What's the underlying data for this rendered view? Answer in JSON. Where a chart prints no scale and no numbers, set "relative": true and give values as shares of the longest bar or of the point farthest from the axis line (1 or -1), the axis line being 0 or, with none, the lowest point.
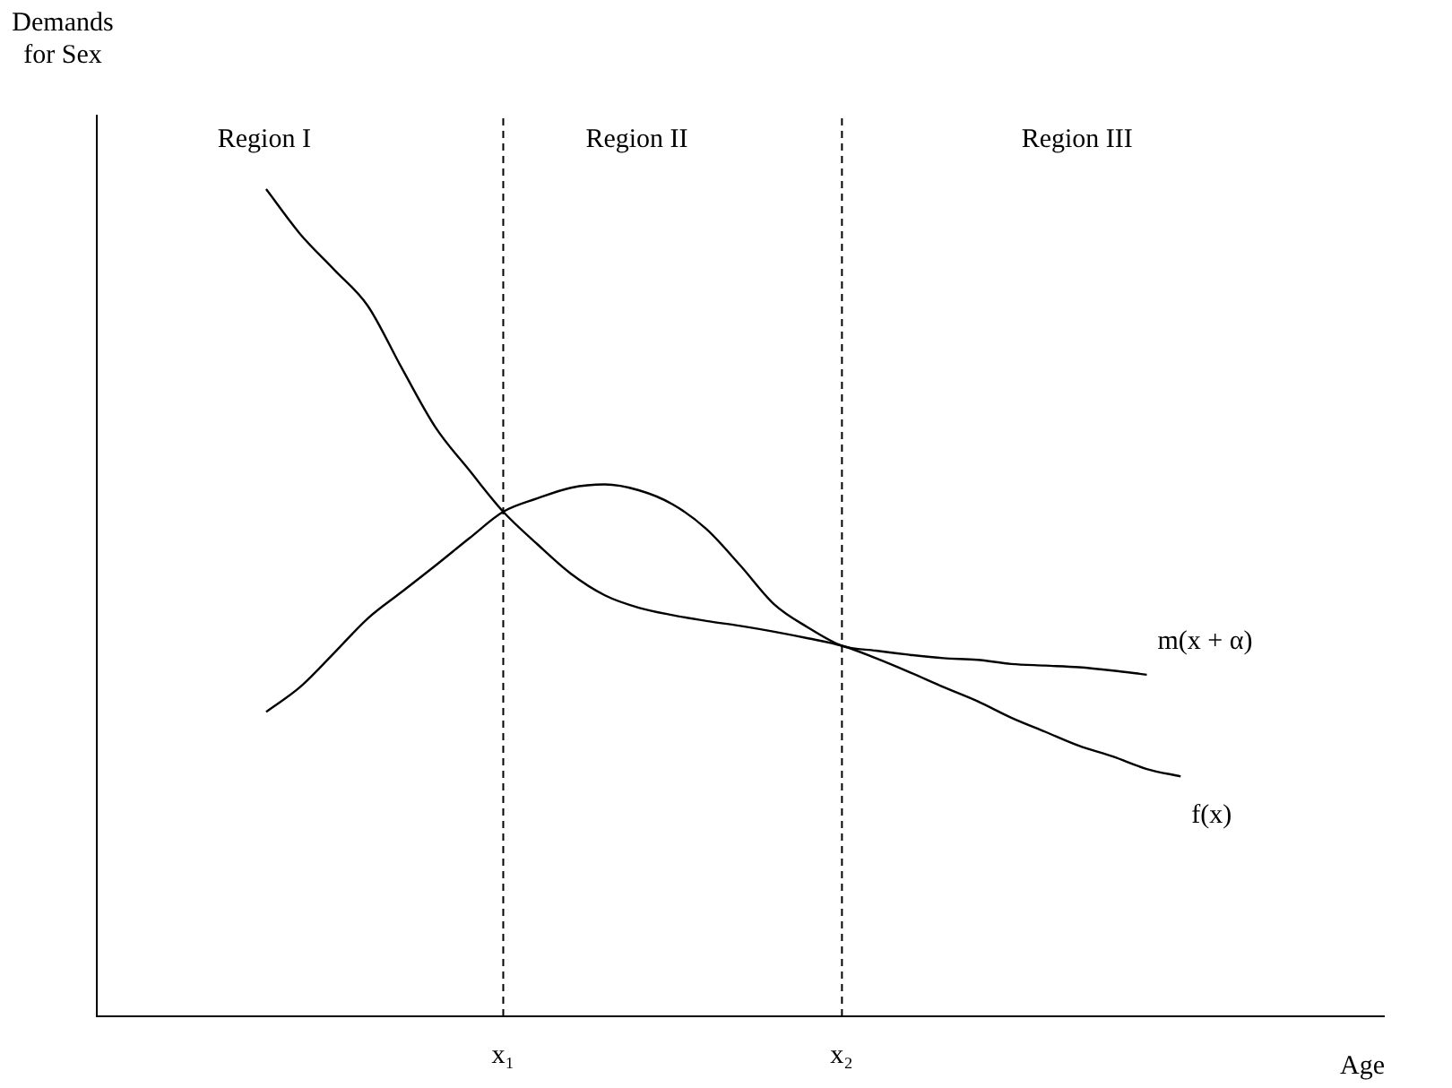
{
  "chart_data": {
    "type": "line",
    "relative": true,
    "xlabel": "Age",
    "ylabel": "Demands for Sex",
    "categories": [
      null,
      null,
      null,
      null,
      null,
      null,
      null,
      null,
      null,
      null,
      null,
      null,
      "x₁",
      null,
      null,
      null,
      null,
      null,
      null,
      null,
      null,
      null,
      "x₂",
      null,
      null,
      null,
      null,
      null,
      null,
      null,
      null,
      null,
      null,
      null,
      null,
      null,
      null,
      null,
      null
    ],
    "tick_labels": "x",
    "legend": false,
    "grid": false,
    "marker": "none",
    "line_style": "solid",
    "series": [
      {
        "name": "f(x)",
        "color": "#000000",
        "values": [
          null,
          null,
          null,
          null,
          null,
          1.0,
          0.946,
          0.903,
          0.859,
          0.784,
          0.712,
          0.66,
          0.61,
          0.571,
          0.535,
          0.509,
          0.494,
          0.485,
          0.478,
          0.472,
          0.465,
          0.457,
          0.448,
          0.433,
          0.416,
          0.398,
          0.381,
          0.361,
          0.344,
          0.327,
          0.314,
          0.299,
          0.29,
          null,
          null,
          null,
          null,
          null,
          null
        ]
      },
      {
        "name": "m(x + α)",
        "color": "#000000",
        "values": [
          null,
          null,
          null,
          null,
          null,
          0.368,
          0.398,
          0.439,
          0.481,
          0.513,
          0.545,
          0.578,
          0.61,
          0.626,
          0.639,
          0.643,
          0.636,
          0.619,
          0.589,
          0.545,
          0.498,
          0.47,
          0.448,
          0.442,
          0.437,
          0.433,
          0.431,
          0.426,
          0.424,
          0.422,
          0.418,
          0.413,
          null,
          null,
          null,
          null,
          null,
          null,
          null
        ]
      }
    ],
    "ref_lines": [
      {
        "axis": "x",
        "value": "x₁",
        "line_style": "dashed"
      },
      {
        "axis": "x",
        "value": "x₂",
        "line_style": "dashed"
      }
    ],
    "annotations": [
      "Region I",
      "Region II",
      "Region III"
    ]
  }
}
